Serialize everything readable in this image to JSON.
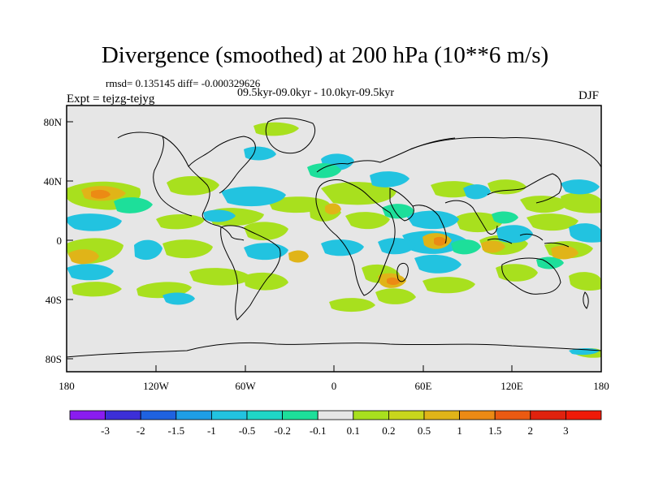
{
  "title": "Divergence (smoothed) at 200 hPa (10**6 m/s)",
  "stats": "rmsd= 0.135145 diff= -0.000329626",
  "period": "09.5kyr-09.0kyr - 10.0kyr-09.5kyr",
  "expt": "Expt = tejzg-tejyg",
  "season": "DJF",
  "lat_labels": [
    "80N",
    "40N",
    "0",
    "40S",
    "80S"
  ],
  "lon_labels": [
    "180",
    "120W",
    "60W",
    "0",
    "60E",
    "120E",
    "180"
  ],
  "colorbar": {
    "labels": [
      "-3",
      "-2",
      "-1.5",
      "-1",
      "-0.5",
      "-0.2",
      "-0.1",
      "0.1",
      "0.2",
      "0.5",
      "1",
      "1.5",
      "2",
      "3"
    ],
    "colors": [
      "#8a1cf0",
      "#3c2fd8",
      "#1f62e0",
      "#1e9ee6",
      "#22c3e0",
      "#1fd6c6",
      "#1ddf9a",
      "#e6e6e6",
      "#a8e01e",
      "#c8d61c",
      "#e0b418",
      "#ec8a14",
      "#ea5a12",
      "#e0220e",
      "#f01a08"
    ]
  },
  "colors": {
    "background_field": "#e6e6e6",
    "coast": "#000000"
  }
}
